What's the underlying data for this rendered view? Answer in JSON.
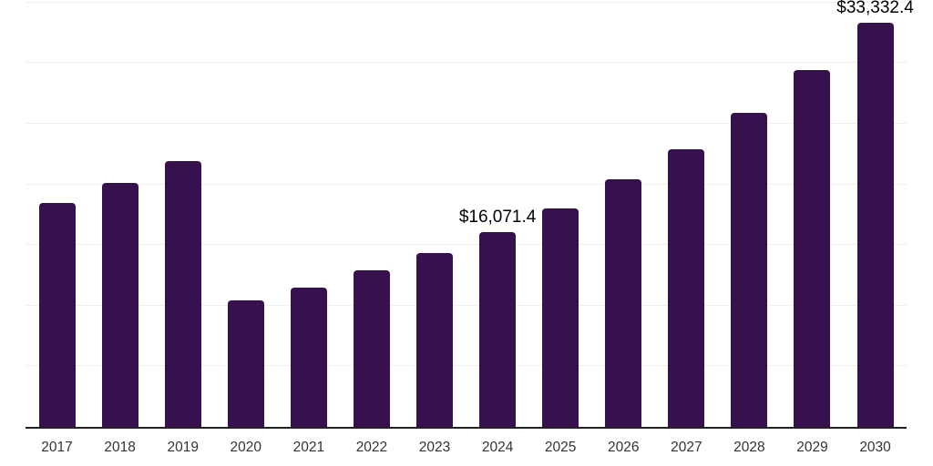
{
  "chart_data": {
    "type": "bar",
    "title": "",
    "xlabel": "",
    "ylabel": "",
    "categories": [
      "2017",
      "2018",
      "2019",
      "2020",
      "2021",
      "2022",
      "2023",
      "2024",
      "2025",
      "2026",
      "2027",
      "2028",
      "2029",
      "2030"
    ],
    "values": [
      18500,
      20100,
      21900,
      10400,
      11500,
      12900,
      14300,
      16071.4,
      18000,
      20400,
      22900,
      25900,
      29400,
      33332.4
    ],
    "data_labels": {
      "2024": "$16,071.4",
      "2030": "$33,332.4"
    },
    "ylim": [
      0,
      35200
    ],
    "grid": true,
    "grid_step": 5000,
    "legend_position": "none",
    "bar_color": "#36114e",
    "axis_line_color": "#222222",
    "gridline_color": "#efefef",
    "tick_label_color": "#333333",
    "annotation_color": "#000000"
  }
}
